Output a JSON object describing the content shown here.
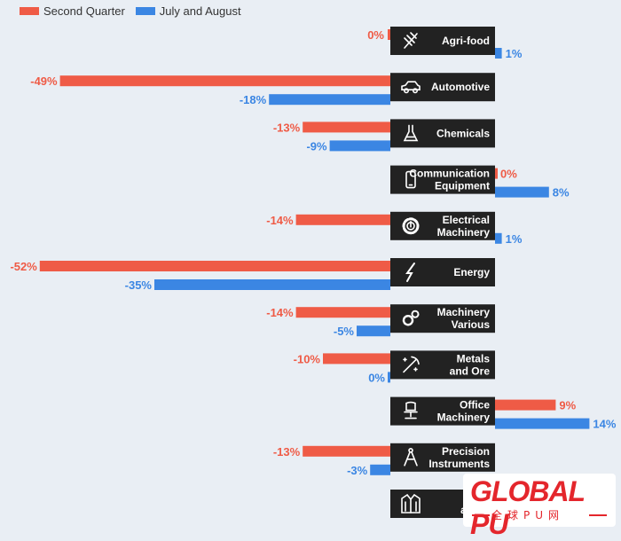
{
  "legend": {
    "series1": "Second Quarter",
    "series2": "July and August"
  },
  "colors": {
    "series1": "#ef5b46",
    "series2": "#3b86e3",
    "category_box": "#222222",
    "category_text": "#ffffff",
    "background": "#e9eef4"
  },
  "chart_data": {
    "type": "bar",
    "orientation": "horizontal",
    "categories": [
      [
        "Agri-food"
      ],
      [
        "Automotive"
      ],
      [
        "Chemicals"
      ],
      [
        "Communication",
        "Equipment"
      ],
      [
        "Electrical",
        "Machinery"
      ],
      [
        "Energy"
      ],
      [
        "Machinery",
        "Various"
      ],
      [
        "Metals",
        "and Ore"
      ],
      [
        "Office",
        "Machinery"
      ],
      [
        "Precision",
        "Instruments"
      ],
      [
        "T",
        "and A"
      ]
    ],
    "icons": [
      "wheat-icon",
      "car-icon",
      "flask-icon",
      "phone-icon",
      "power-icon",
      "lightning-icon",
      "gears-icon",
      "pickaxe-icon",
      "chair-icon",
      "compass-icon",
      "jacket-icon"
    ],
    "series": [
      {
        "name": "Second Quarter",
        "values": [
          0,
          -49,
          -13,
          0,
          -14,
          -52,
          -14,
          -10,
          9,
          -13,
          null
        ]
      },
      {
        "name": "July and August",
        "values": [
          1,
          -18,
          -9,
          8,
          1,
          -35,
          -5,
          0,
          14,
          -3,
          null
        ]
      }
    ],
    "labels": {
      "series1": [
        "0%",
        "-49%",
        "-13%",
        "0%",
        "-14%",
        "-52%",
        "-14%",
        "-10%",
        "9%",
        "-13%",
        ""
      ],
      "series2": [
        "1%",
        "-18%",
        "-9%",
        "8%",
        "1%",
        "-35%",
        "-5%",
        "0%",
        "14%",
        "-3%",
        ""
      ]
    },
    "unit": "%"
  },
  "logo": {
    "text": "GLOBAL PU",
    "subtext": "全球PU网"
  }
}
